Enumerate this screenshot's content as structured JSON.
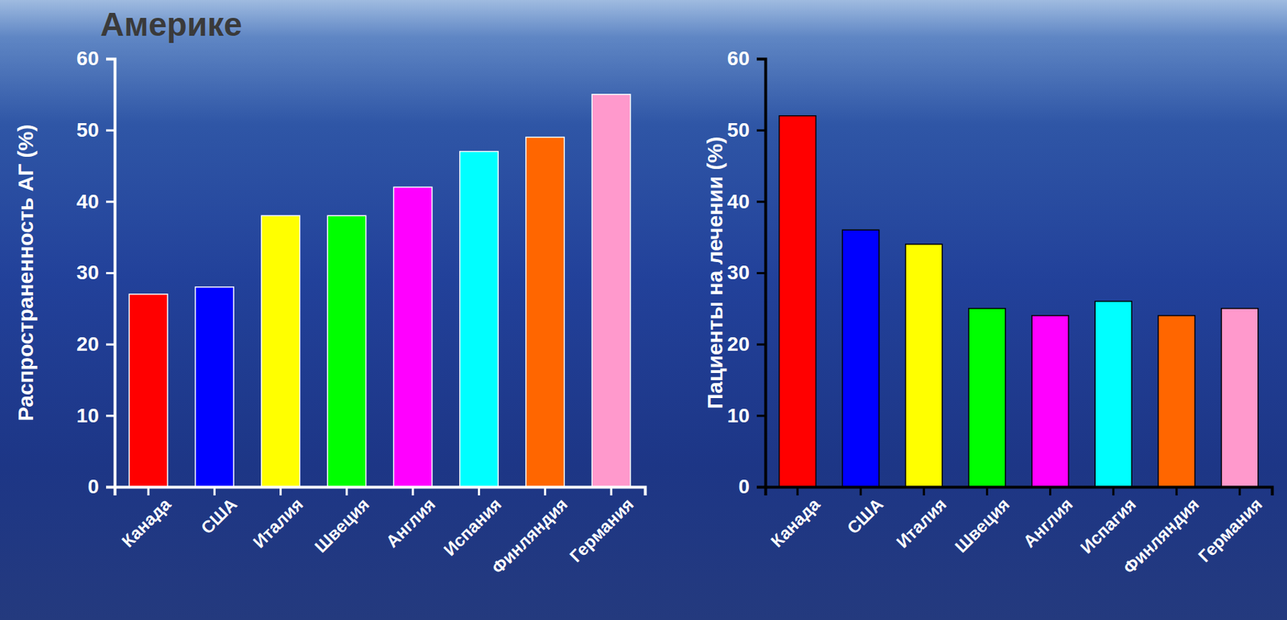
{
  "chart_data": [
    {
      "type": "bar",
      "title": "Америке",
      "categories": [
        "Канада",
        "США",
        "Италия",
        "Швеция",
        "Англия",
        "Испания",
        "Финляндия",
        "Германия"
      ],
      "values": [
        27,
        28,
        38,
        38,
        42,
        47,
        49,
        55
      ],
      "colors": [
        "#ff0000",
        "#0000ff",
        "#ffff00",
        "#00ff00",
        "#ff00ff",
        "#00ffff",
        "#ff6600",
        "#ff99cc"
      ],
      "y_label": "Распространенность АГ (%)",
      "ylim": [
        0,
        60
      ],
      "yticks": [
        0,
        10,
        20,
        30,
        40,
        50,
        60
      ],
      "grid": false
    },
    {
      "type": "bar",
      "categories": [
        "Канада",
        "США",
        "Италия",
        "Швеция",
        "Англия",
        "Испагия",
        "Финляндия",
        "Германия"
      ],
      "values": [
        52,
        36,
        34,
        25,
        24,
        26,
        24,
        25
      ],
      "colors": [
        "#ff0000",
        "#0000ff",
        "#ffff00",
        "#00ff00",
        "#ff00ff",
        "#00ffff",
        "#ff6600",
        "#ff99cc"
      ],
      "y_label": "Пациенты на лечении (%)",
      "ylim": [
        0,
        60
      ],
      "yticks": [
        0,
        10,
        20,
        30,
        40,
        50,
        60
      ],
      "grid": false
    }
  ]
}
